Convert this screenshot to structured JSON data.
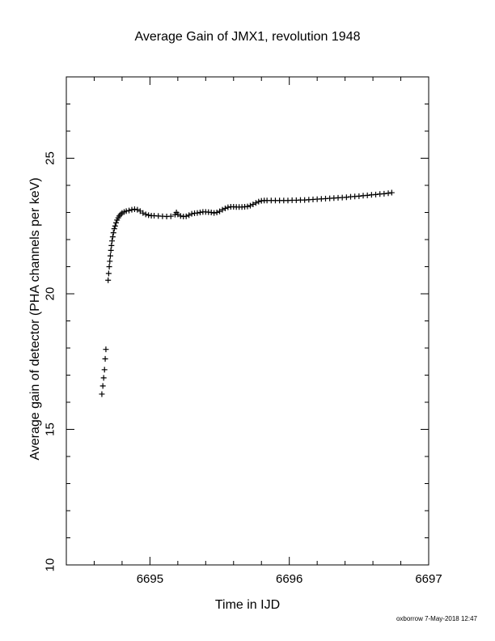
{
  "chart_data": {
    "type": "scatter",
    "title": "Average Gain of JMX1, revolution 1948",
    "xlabel": "Time in IJD",
    "ylabel": "Average gain of detector (PHA channels per keV)",
    "xlim": [
      6694.4,
      6697.0
    ],
    "ylim": [
      10,
      28
    ],
    "x_ticks": [
      "6695",
      "6696",
      "6697"
    ],
    "y_ticks": [
      "10",
      "15",
      "20",
      "25"
    ],
    "marker": "+",
    "grid": false,
    "footer": "oxborrow  7-May-2018 12:47",
    "points": [
      [
        6694.655,
        16.3
      ],
      [
        6694.662,
        16.6
      ],
      [
        6694.668,
        16.9
      ],
      [
        6694.674,
        17.2
      ],
      [
        6694.679,
        17.6
      ],
      [
        6694.684,
        17.95
      ],
      [
        6694.7,
        20.5
      ],
      [
        6694.704,
        20.75
      ],
      [
        6694.708,
        21.0
      ],
      [
        6694.712,
        21.2
      ],
      [
        6694.716,
        21.4
      ],
      [
        6694.72,
        21.6
      ],
      [
        6694.724,
        21.78
      ],
      [
        6694.728,
        21.95
      ],
      [
        6694.733,
        22.1
      ],
      [
        6694.738,
        22.25
      ],
      [
        6694.744,
        22.4
      ],
      [
        6694.75,
        22.5
      ],
      [
        6694.757,
        22.62
      ],
      [
        6694.764,
        22.72
      ],
      [
        6694.772,
        22.8
      ],
      [
        6694.78,
        22.87
      ],
      [
        6694.79,
        22.93
      ],
      [
        6694.8,
        22.98
      ],
      [
        6694.815,
        23.02
      ],
      [
        6694.83,
        23.05
      ],
      [
        6694.85,
        23.07
      ],
      [
        6694.87,
        23.1
      ],
      [
        6694.89,
        23.12
      ],
      [
        6694.91,
        23.1
      ],
      [
        6694.93,
        23.05
      ],
      [
        6694.95,
        22.98
      ],
      [
        6694.97,
        22.93
      ],
      [
        6694.99,
        22.9
      ],
      [
        6695.01,
        22.88
      ],
      [
        6695.03,
        22.88
      ],
      [
        6695.06,
        22.87
      ],
      [
        6695.09,
        22.86
      ],
      [
        6695.12,
        22.85
      ],
      [
        6695.15,
        22.86
      ],
      [
        6695.18,
        22.92
      ],
      [
        6695.19,
        23.0
      ],
      [
        6695.2,
        22.93
      ],
      [
        6695.22,
        22.87
      ],
      [
        6695.24,
        22.85
      ],
      [
        6695.26,
        22.86
      ],
      [
        6695.28,
        22.9
      ],
      [
        6695.3,
        22.95
      ],
      [
        6695.32,
        22.97
      ],
      [
        6695.34,
        22.98
      ],
      [
        6695.36,
        23.0
      ],
      [
        6695.38,
        23.02
      ],
      [
        6695.4,
        23.02
      ],
      [
        6695.42,
        23.01
      ],
      [
        6695.44,
        23.0
      ],
      [
        6695.46,
        22.98
      ],
      [
        6695.48,
        23.0
      ],
      [
        6695.5,
        23.04
      ],
      [
        6695.52,
        23.1
      ],
      [
        6695.54,
        23.15
      ],
      [
        6695.56,
        23.19
      ],
      [
        6695.58,
        23.21
      ],
      [
        6695.6,
        23.21
      ],
      [
        6695.62,
        23.2
      ],
      [
        6695.64,
        23.2
      ],
      [
        6695.66,
        23.2
      ],
      [
        6695.68,
        23.21
      ],
      [
        6695.7,
        23.22
      ],
      [
        6695.72,
        23.25
      ],
      [
        6695.74,
        23.3
      ],
      [
        6695.76,
        23.35
      ],
      [
        6695.78,
        23.4
      ],
      [
        6695.8,
        23.43
      ],
      [
        6695.82,
        23.44
      ],
      [
        6695.84,
        23.44
      ],
      [
        6695.87,
        23.44
      ],
      [
        6695.9,
        23.44
      ],
      [
        6695.93,
        23.44
      ],
      [
        6695.96,
        23.44
      ],
      [
        6695.99,
        23.44
      ],
      [
        6696.02,
        23.45
      ],
      [
        6696.05,
        23.45
      ],
      [
        6696.08,
        23.46
      ],
      [
        6696.11,
        23.46
      ],
      [
        6696.14,
        23.47
      ],
      [
        6696.17,
        23.48
      ],
      [
        6696.2,
        23.49
      ],
      [
        6696.23,
        23.5
      ],
      [
        6696.26,
        23.51
      ],
      [
        6696.29,
        23.52
      ],
      [
        6696.32,
        23.53
      ],
      [
        6696.35,
        23.54
      ],
      [
        6696.38,
        23.55
      ],
      [
        6696.41,
        23.56
      ],
      [
        6696.44,
        23.58
      ],
      [
        6696.47,
        23.59
      ],
      [
        6696.5,
        23.6
      ],
      [
        6696.53,
        23.62
      ],
      [
        6696.56,
        23.63
      ],
      [
        6696.59,
        23.65
      ],
      [
        6696.62,
        23.66
      ],
      [
        6696.65,
        23.68
      ],
      [
        6696.68,
        23.69
      ],
      [
        6696.71,
        23.71
      ],
      [
        6696.735,
        23.73
      ]
    ]
  }
}
